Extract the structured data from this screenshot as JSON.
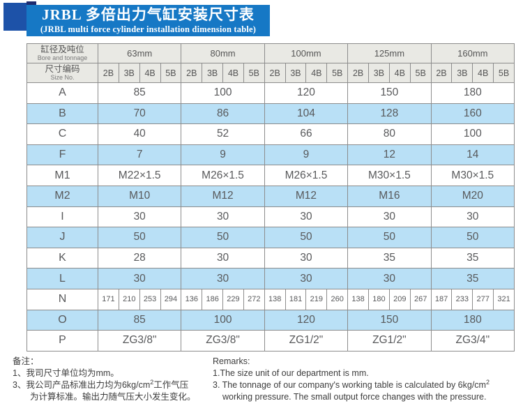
{
  "banner": {
    "title_cn": "JRBL 多倍出力气缸安装尺寸表",
    "title_en": "(JRBL multi force cylinder installation dimension table)",
    "bg_color": "#1678c5",
    "tail_color": "#1d52a8",
    "fold_color": "#1e2b6f"
  },
  "table": {
    "corner_header": {
      "cn": "缸径及吨位",
      "en": "Bore and tonnage"
    },
    "size_header": {
      "cn": "尺寸编码",
      "en": "Size No."
    },
    "bore_groups": [
      "63mm",
      "80mm",
      "100mm",
      "125mm",
      "160mm"
    ],
    "size_codes": [
      "2B",
      "3B",
      "4B",
      "5B"
    ],
    "rows": [
      {
        "label": "A",
        "values": [
          "85",
          "100",
          "120",
          "150",
          "180"
        ]
      },
      {
        "label": "B",
        "values": [
          "70",
          "86",
          "104",
          "128",
          "160"
        ]
      },
      {
        "label": "C",
        "values": [
          "40",
          "52",
          "66",
          "80",
          "100"
        ]
      },
      {
        "label": "F",
        "values": [
          "7",
          "9",
          "9",
          "12",
          "14"
        ]
      },
      {
        "label": "M1",
        "values": [
          "M22×1.5",
          "M26×1.5",
          "M26×1.5",
          "M30×1.5",
          "M30×1.5"
        ]
      },
      {
        "label": "M2",
        "values": [
          "M10",
          "M12",
          "M12",
          "M16",
          "M20"
        ]
      },
      {
        "label": "I",
        "values": [
          "30",
          "30",
          "30",
          "30",
          "30"
        ]
      },
      {
        "label": "J",
        "values": [
          "50",
          "50",
          "50",
          "50",
          "50"
        ]
      },
      {
        "label": "K",
        "values": [
          "28",
          "30",
          "30",
          "35",
          "35"
        ]
      },
      {
        "label": "L",
        "values": [
          "30",
          "30",
          "30",
          "30",
          "35"
        ]
      },
      {
        "label": "N",
        "values": [
          [
            "171",
            "210",
            "253",
            "294"
          ],
          [
            "136",
            "186",
            "229",
            "272"
          ],
          [
            "138",
            "181",
            "219",
            "260"
          ],
          [
            "138",
            "180",
            "209",
            "267"
          ],
          [
            "187",
            "233",
            "277",
            "321"
          ]
        ]
      },
      {
        "label": "O",
        "values": [
          "85",
          "100",
          "120",
          "150",
          "180"
        ]
      },
      {
        "label": "P",
        "values": [
          "ZG3/8\"",
          "ZG3/8\"",
          "ZG1/2\"",
          "ZG1/2\"",
          "ZG3/4\""
        ]
      }
    ],
    "colors": {
      "band": "#b9e0f6",
      "header_bg": "#e9e9e4",
      "border": "#8c8c8c",
      "text": "#58595b"
    }
  },
  "notes_cn": {
    "heading": "备注：",
    "line1": "1、我司尺寸单位均为mm。",
    "line3_pre": "3、我公司产品标准出力均为6kg/cm",
    "line3_sup": "2",
    "line3_post": "工作气压",
    "line4": "为计算标准。输出力随气压大小发生变化。"
  },
  "notes_en": {
    "heading": "Remarks:",
    "line1": "1.The size unit of our department is mm.",
    "line3_pre": "3. The tonnage of our company's working table is calculated by 6kg/cm",
    "line3_sup": "2",
    "line4": "working pressure. The small output force changes with the pressure."
  }
}
